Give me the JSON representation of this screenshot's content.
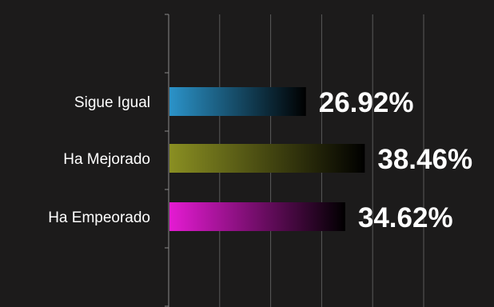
{
  "chart_data": {
    "type": "bar",
    "orientation": "horizontal",
    "categories": [
      "Sigue Igual",
      "Ha Mejorado",
      "Ha Empeorado"
    ],
    "values": [
      26.92,
      38.46,
      34.62
    ],
    "value_labels": [
      "26.92%",
      "38.46%",
      "34.62%"
    ],
    "colors": [
      "#2b93c9",
      "#8a8f22",
      "#e51bd3"
    ],
    "xlim": [
      0,
      50
    ],
    "grid": true,
    "legend": "none"
  }
}
